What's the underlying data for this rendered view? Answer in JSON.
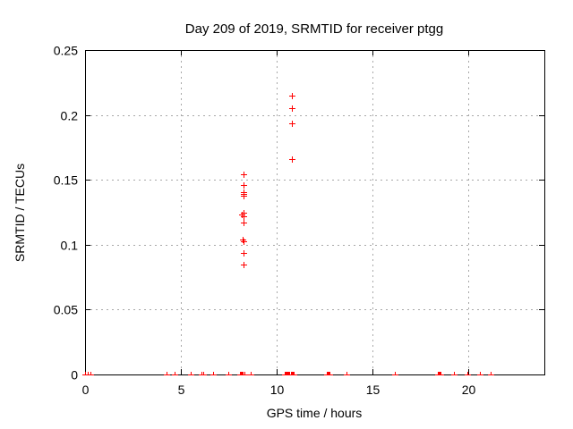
{
  "chart_data": {
    "type": "scatter",
    "title": "Day 209 of 2019, SRMTID for receiver ptgg",
    "xlabel": "GPS time / hours",
    "ylabel": "SRMTID / TECUs",
    "xlim": [
      0,
      24
    ],
    "ylim": [
      0,
      0.25
    ],
    "xticks": [
      0,
      5,
      10,
      15,
      20
    ],
    "xtick_labels": [
      "0",
      "5",
      "10",
      "15",
      "20"
    ],
    "yticks": [
      0,
      0.05,
      0.1,
      0.15,
      0.2,
      0.25
    ],
    "ytick_labels": [
      "0",
      "0.05",
      "0.1",
      "0.15",
      "0.2",
      "0.25"
    ],
    "grid": "dashed gray at major ticks",
    "legend": "none",
    "marker": {
      "shape": "plus",
      "color": "#ff0000",
      "size": 7
    },
    "axis_color": "#000000",
    "grid_color": "#a8a8a8",
    "series": [
      {
        "name": "SRMTID",
        "points": [
          [
            0.0,
            0
          ],
          [
            0.15,
            0
          ],
          [
            0.3,
            0
          ],
          [
            4.24,
            0
          ],
          [
            4.68,
            0
          ],
          [
            5.51,
            0
          ],
          [
            6.1,
            0
          ],
          [
            6.16,
            0
          ],
          [
            6.7,
            0
          ],
          [
            7.48,
            0
          ],
          [
            8.08,
            0
          ],
          [
            8.12,
            0
          ],
          [
            8.16,
            0
          ],
          [
            8.2,
            0
          ],
          [
            8.24,
            0
          ],
          [
            8.34,
            0
          ],
          [
            8.65,
            0
          ],
          [
            8.3,
            0.154
          ],
          [
            8.3,
            0.146
          ],
          [
            8.3,
            0.1405
          ],
          [
            8.3,
            0.139
          ],
          [
            8.3,
            0.1375
          ],
          [
            8.19,
            0.1235
          ],
          [
            8.3,
            0.1245
          ],
          [
            8.3,
            0.122
          ],
          [
            8.3,
            0.117
          ],
          [
            8.25,
            0.104
          ],
          [
            8.3,
            0.1025
          ],
          [
            8.3,
            0.0935
          ],
          [
            8.3,
            0.085
          ],
          [
            10.44,
            0
          ],
          [
            10.49,
            0
          ],
          [
            10.54,
            0
          ],
          [
            10.59,
            0
          ],
          [
            10.64,
            0
          ],
          [
            10.69,
            0
          ],
          [
            10.74,
            0
          ],
          [
            10.79,
            0
          ],
          [
            10.84,
            0
          ],
          [
            10.89,
            0
          ],
          [
            10.81,
            0.215
          ],
          [
            10.81,
            0.205
          ],
          [
            10.81,
            0.1935
          ],
          [
            10.81,
            0.166
          ],
          [
            12.62,
            0
          ],
          [
            12.67,
            0
          ],
          [
            12.72,
            0
          ],
          [
            12.77,
            0
          ],
          [
            13.65,
            0
          ],
          [
            16.2,
            0
          ],
          [
            18.44,
            0
          ],
          [
            18.49,
            0
          ],
          [
            18.54,
            0
          ],
          [
            18.59,
            0
          ],
          [
            19.28,
            0
          ],
          [
            19.98,
            0
          ],
          [
            20.65,
            0
          ],
          [
            21.2,
            0
          ]
        ]
      }
    ]
  }
}
